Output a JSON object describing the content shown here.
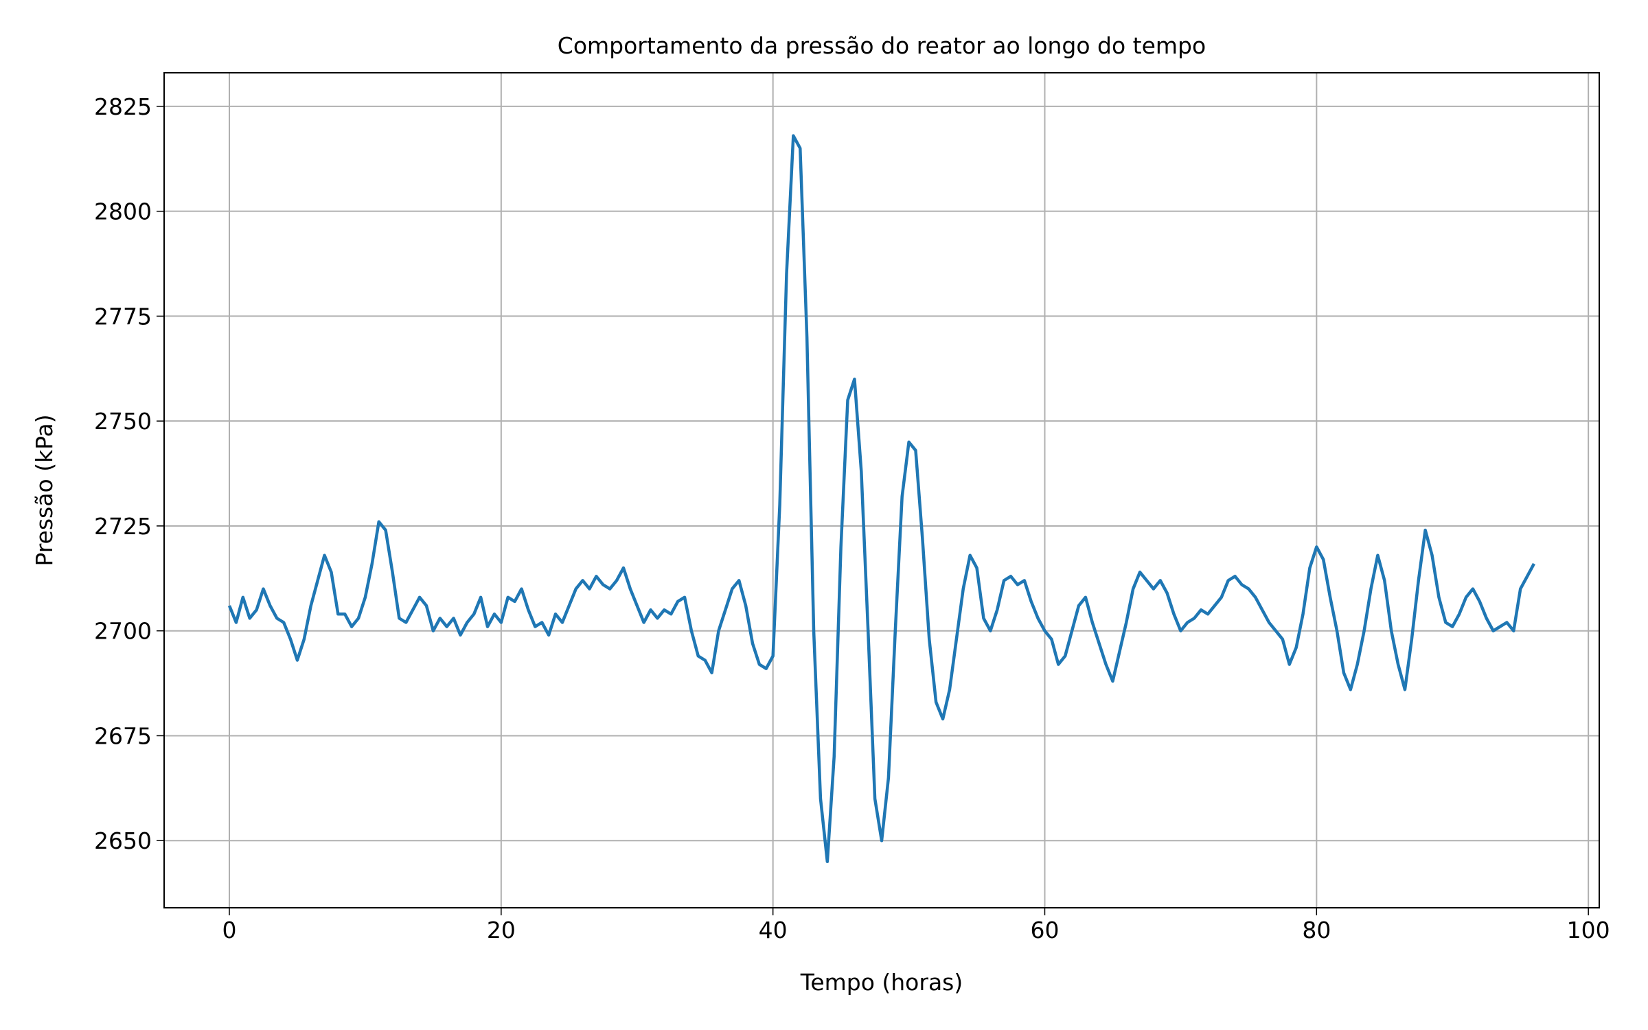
{
  "chart_data": {
    "type": "line",
    "title": "Comportamento da pressão do reator ao longo do tempo",
    "x_label": "Tempo (horas)",
    "y_label": "Pressão (kPa)",
    "xlim": [
      -4.8,
      100.8
    ],
    "xticks": [
      0,
      20,
      40,
      60,
      80,
      100
    ],
    "ylim": [
      2634,
      2833
    ],
    "yticks": [
      2650,
      2675,
      2700,
      2725,
      2750,
      2775,
      2800,
      2825
    ],
    "grid": true,
    "x": [
      0,
      0.5,
      1,
      1.5,
      2,
      2.5,
      3,
      3.5,
      4,
      4.5,
      5,
      5.5,
      6,
      6.5,
      7,
      7.5,
      8,
      8.5,
      9,
      9.5,
      10,
      10.5,
      11,
      11.5,
      12,
      12.5,
      13,
      13.5,
      14,
      14.5,
      15,
      15.5,
      16,
      16.5,
      17,
      17.5,
      18,
      18.5,
      19,
      19.5,
      20,
      20.5,
      21,
      21.5,
      22,
      22.5,
      23,
      23.5,
      24,
      24.5,
      25,
      25.5,
      26,
      26.5,
      27,
      27.5,
      28,
      28.5,
      29,
      29.5,
      30,
      30.5,
      31,
      31.5,
      32,
      32.5,
      33,
      33.5,
      34,
      34.5,
      35,
      35.5,
      36,
      36.5,
      37,
      37.5,
      38,
      38.5,
      39,
      39.5,
      40,
      40.5,
      41,
      41.5,
      42,
      42.5,
      43,
      43.5,
      44,
      44.5,
      45,
      45.5,
      46,
      46.5,
      47,
      47.5,
      48,
      48.5,
      49,
      49.5,
      50,
      50.5,
      51,
      51.5,
      52,
      52.5,
      53,
      53.5,
      54,
      54.5,
      55,
      55.5,
      56,
      56.5,
      57,
      57.5,
      58,
      58.5,
      59,
      59.5,
      60,
      60.5,
      61,
      61.5,
      62,
      62.5,
      63,
      63.5,
      64,
      64.5,
      65,
      65.5,
      66,
      66.5,
      67,
      67.5,
      68,
      68.5,
      69,
      69.5,
      70,
      70.5,
      71,
      71.5,
      72,
      72.5,
      73,
      73.5,
      74,
      74.5,
      75,
      75.5,
      76,
      76.5,
      77,
      77.5,
      78,
      78.5,
      79,
      79.5,
      80,
      80.5,
      81,
      81.5,
      82,
      82.5,
      83,
      83.5,
      84,
      84.5,
      85,
      85.5,
      86,
      86.5,
      87,
      87.5,
      88,
      88.5,
      89,
      89.5,
      90,
      90.5,
      91,
      91.5,
      92,
      92.5,
      93,
      93.5,
      94,
      94.5,
      95,
      95.5,
      96
    ],
    "series": [
      {
        "color": "#1f77b4",
        "values": [
          2706,
          2702,
          2708,
          2703,
          2705,
          2710,
          2706,
          2703,
          2702,
          2698,
          2693,
          2698,
          2706,
          2712,
          2718,
          2714,
          2704,
          2704,
          2701,
          2703,
          2708,
          2716,
          2726,
          2724,
          2714,
          2703,
          2702,
          2705,
          2708,
          2706,
          2700,
          2703,
          2701,
          2703,
          2699,
          2702,
          2704,
          2708,
          2701,
          2704,
          2702,
          2708,
          2707,
          2710,
          2705,
          2701,
          2702,
          2699,
          2704,
          2702,
          2706,
          2710,
          2712,
          2710,
          2713,
          2711,
          2710,
          2712,
          2715,
          2710,
          2706,
          2702,
          2705,
          2703,
          2705,
          2704,
          2707,
          2708,
          2700,
          2694,
          2693,
          2690,
          2700,
          2705,
          2710,
          2712,
          2706,
          2697,
          2692,
          2691,
          2694,
          2730,
          2785,
          2818,
          2815,
          2770,
          2700,
          2660,
          2645,
          2670,
          2720,
          2755,
          2760,
          2738,
          2700,
          2660,
          2650,
          2665,
          2700,
          2732,
          2745,
          2743,
          2722,
          2698,
          2683,
          2679,
          2686,
          2698,
          2710,
          2718,
          2715,
          2703,
          2700,
          2705,
          2712,
          2713,
          2711,
          2712,
          2707,
          2703,
          2700,
          2698,
          2692,
          2694,
          2700,
          2706,
          2708,
          2702,
          2697,
          2692,
          2688,
          2695,
          2702,
          2710,
          2714,
          2712,
          2710,
          2712,
          2709,
          2704,
          2700,
          2702,
          2703,
          2705,
          2704,
          2706,
          2708,
          2712,
          2713,
          2711,
          2710,
          2708,
          2705,
          2702,
          2700,
          2698,
          2692,
          2696,
          2704,
          2715,
          2720,
          2717,
          2708,
          2700,
          2690,
          2686,
          2692,
          2700,
          2710,
          2718,
          2712,
          2700,
          2692,
          2686,
          2698,
          2712,
          2724,
          2718,
          2708,
          2702,
          2701,
          2704,
          2708,
          2710,
          2707,
          2703,
          2700,
          2701,
          2702,
          2700,
          2710,
          2713,
          2716
        ]
      }
    ]
  }
}
